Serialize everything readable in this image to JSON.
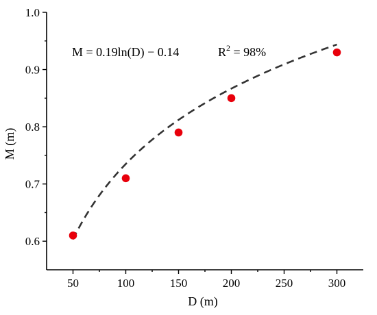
{
  "chart_data": {
    "type": "scatter",
    "xlabel": "D (m)",
    "ylabel": "M (m)",
    "xlim": [
      25,
      325
    ],
    "ylim": [
      0.55,
      1.0
    ],
    "x_ticks": [
      50,
      100,
      150,
      200,
      250,
      300
    ],
    "x_tick_labels": [
      "50",
      "100",
      "150",
      "200",
      "250",
      "300"
    ],
    "y_ticks": [
      0.6,
      0.7,
      0.8,
      0.9,
      1.0
    ],
    "y_tick_labels": [
      "0.6",
      "0.7",
      "0.8",
      "0.9",
      "1.0"
    ],
    "points": [
      {
        "x": 50,
        "y": 0.61
      },
      {
        "x": 100,
        "y": 0.71
      },
      {
        "x": 150,
        "y": 0.79
      },
      {
        "x": 200,
        "y": 0.85
      },
      {
        "x": 300,
        "y": 0.93
      }
    ],
    "fit": {
      "a": 0.19,
      "b": -0.14,
      "form": "log",
      "x_range": [
        50,
        300
      ]
    },
    "annotation": {
      "equation": "M = 0.19ln(D) − 0.14",
      "r2_prefix": "R",
      "r2_exponent": "2",
      "r2_suffix": " = 98%"
    },
    "point_color": "#e8000b",
    "line_color": "#333333",
    "grid": false,
    "legend": "none"
  }
}
